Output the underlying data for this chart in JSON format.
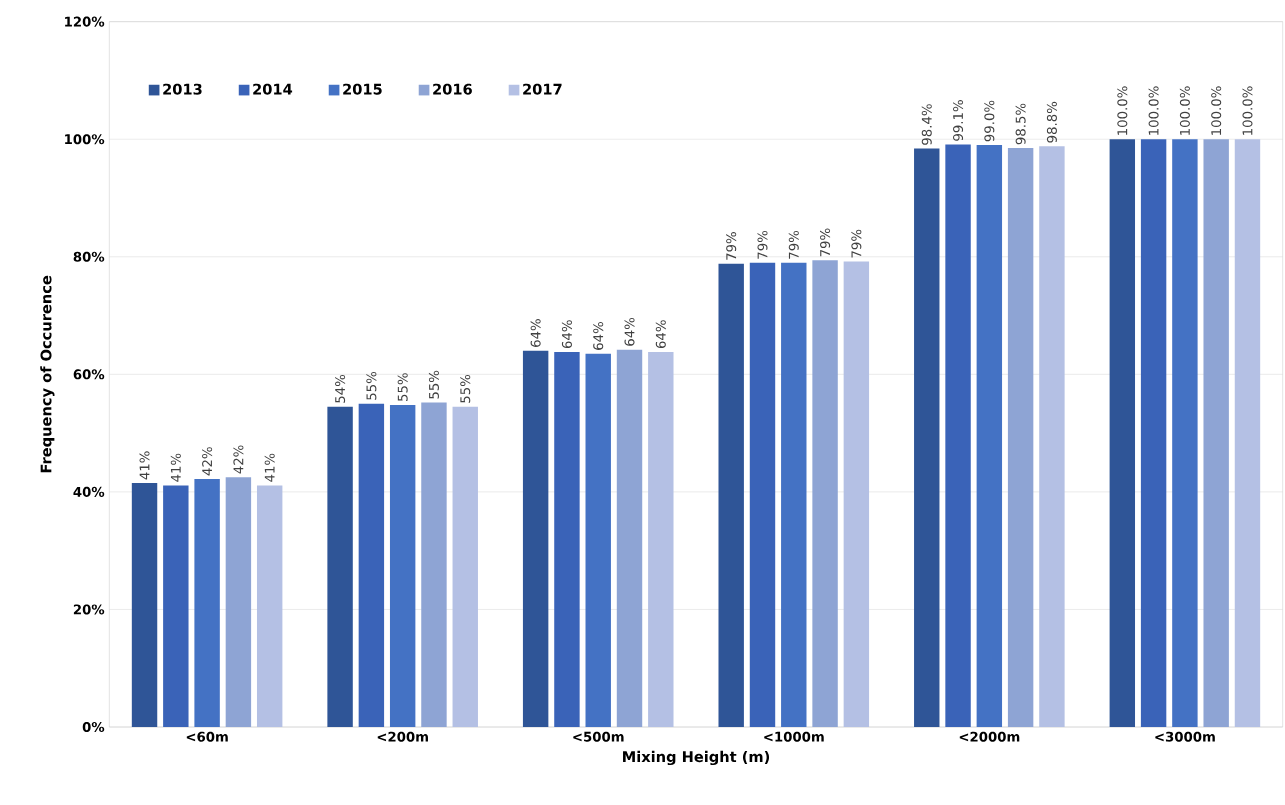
{
  "chart_data": {
    "type": "bar",
    "xlabel": "Mixing Height (m)",
    "ylabel": "Frequency of Occurence",
    "categories": [
      "<60m",
      "<200m",
      "<500m",
      "<1000m",
      "<2000m",
      "<3000m"
    ],
    "series": [
      {
        "name": "2013",
        "color": "#2f5597",
        "values": [
          41.5,
          54.5,
          64.0,
          78.8,
          98.4,
          100.0
        ],
        "value_labels": [
          "41%",
          "54%",
          "64%",
          "79%",
          "98.4%",
          "100.0%"
        ]
      },
      {
        "name": "2014",
        "color": "#3a63b8",
        "values": [
          41.1,
          55.0,
          63.8,
          79.0,
          99.1,
          100.0
        ],
        "value_labels": [
          "41%",
          "55%",
          "64%",
          "79%",
          "99.1%",
          "100.0%"
        ]
      },
      {
        "name": "2015",
        "color": "#4472c4",
        "values": [
          42.2,
          54.8,
          63.5,
          79.0,
          99.0,
          100.0
        ],
        "value_labels": [
          "42%",
          "55%",
          "64%",
          "79%",
          "99.0%",
          "100.0%"
        ]
      },
      {
        "name": "2016",
        "color": "#8ea4d4",
        "values": [
          42.5,
          55.2,
          64.2,
          79.4,
          98.5,
          100.0
        ],
        "value_labels": [
          "42%",
          "55%",
          "64%",
          "79%",
          "98.5%",
          "100.0%"
        ]
      },
      {
        "name": "2017",
        "color": "#b4c0e4",
        "values": [
          41.1,
          54.5,
          63.8,
          79.2,
          98.8,
          100.0
        ],
        "value_labels": [
          "41%",
          "55%",
          "64%",
          "79%",
          "98.8%",
          "100.0%"
        ]
      }
    ],
    "ylim": [
      0,
      120
    ],
    "yticks": [
      {
        "value": 0,
        "label": "0%"
      },
      {
        "value": 20,
        "label": "20%"
      },
      {
        "value": 40,
        "label": "40%"
      },
      {
        "value": 60,
        "label": "60%"
      },
      {
        "value": 80,
        "label": "80%"
      },
      {
        "value": 100,
        "label": "100%"
      },
      {
        "value": 120,
        "label": "120%"
      }
    ],
    "grid": "y",
    "legend": "top left"
  }
}
